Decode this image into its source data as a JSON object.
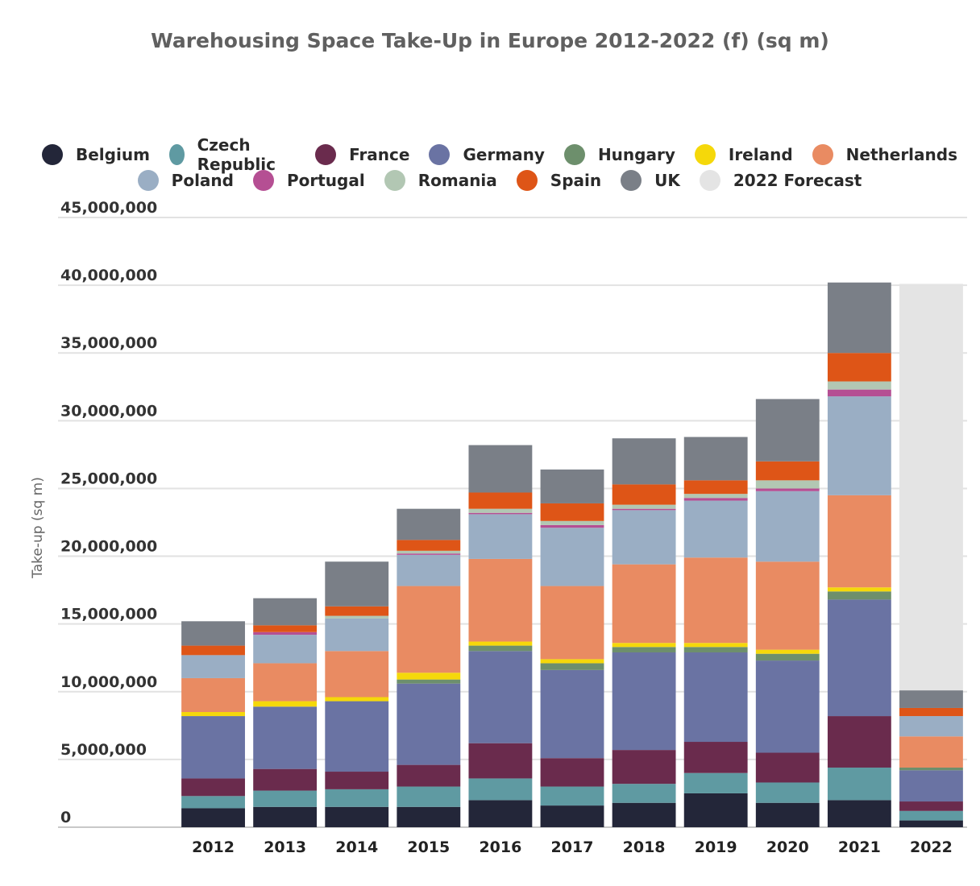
{
  "chart_data": {
    "type": "bar",
    "stacked": true,
    "title": "Warehousing Space Take-Up in Europe 2012-2022 (f) (sq m)",
    "ylabel": "Take-up (sq m)",
    "xlabel": "",
    "ylim": [
      0,
      45000000
    ],
    "yticks": [
      0,
      5000000,
      10000000,
      15000000,
      20000000,
      25000000,
      30000000,
      35000000,
      40000000,
      45000000
    ],
    "ytick_labels": [
      "0",
      "5,000,000",
      "10,000,000",
      "15,000,000",
      "20,000,000",
      "25,000,000",
      "30,000,000",
      "35,000,000",
      "40,000,000",
      "45,000,000"
    ],
    "grid": true,
    "legend_position": "top",
    "categories": [
      "2012",
      "2013",
      "2014",
      "2015",
      "2016",
      "2017",
      "2018",
      "2019",
      "2020",
      "2021",
      "2022"
    ],
    "series": [
      {
        "name": "Belgium",
        "color": "#232639",
        "values": [
          1400000,
          1500000,
          1500000,
          1500000,
          2000000,
          1600000,
          1800000,
          2500000,
          1800000,
          2000000,
          500000
        ]
      },
      {
        "name": "Czech Republic",
        "color": "#5f9aa2",
        "values": [
          900000,
          1200000,
          1300000,
          1500000,
          1600000,
          1400000,
          1400000,
          1500000,
          1500000,
          2400000,
          700000
        ]
      },
      {
        "name": "France",
        "color": "#6a2b4d",
        "values": [
          1300000,
          1600000,
          1300000,
          1600000,
          2600000,
          2100000,
          2500000,
          2300000,
          2200000,
          3800000,
          700000
        ]
      },
      {
        "name": "Germany",
        "color": "#6a73a3",
        "values": [
          4600000,
          4600000,
          5200000,
          6000000,
          6800000,
          6500000,
          7200000,
          6600000,
          6800000,
          8600000,
          2300000
        ]
      },
      {
        "name": "Hungary",
        "color": "#6d8f6c",
        "values": [
          0,
          0,
          0,
          300000,
          400000,
          500000,
          400000,
          400000,
          500000,
          600000,
          200000
        ]
      },
      {
        "name": "Ireland",
        "color": "#f5d80a",
        "values": [
          300000,
          400000,
          300000,
          500000,
          300000,
          300000,
          300000,
          300000,
          300000,
          300000,
          0
        ]
      },
      {
        "name": "Netherlands",
        "color": "#e98b62",
        "values": [
          2500000,
          2800000,
          3400000,
          6400000,
          6100000,
          5400000,
          5800000,
          6300000,
          6500000,
          6800000,
          2300000
        ]
      },
      {
        "name": "Poland",
        "color": "#9aaec4",
        "values": [
          1700000,
          2100000,
          2400000,
          2300000,
          3300000,
          4300000,
          4000000,
          4200000,
          5200000,
          7300000,
          1500000
        ]
      },
      {
        "name": "Portugal",
        "color": "#b54f93",
        "values": [
          0,
          200000,
          0,
          100000,
          100000,
          200000,
          100000,
          200000,
          200000,
          500000,
          0
        ]
      },
      {
        "name": "Romania",
        "color": "#b2c7b3",
        "values": [
          0,
          0,
          200000,
          200000,
          300000,
          300000,
          300000,
          300000,
          600000,
          600000,
          0
        ]
      },
      {
        "name": "Spain",
        "color": "#de5517",
        "values": [
          700000,
          500000,
          700000,
          800000,
          1200000,
          1300000,
          1500000,
          1000000,
          1400000,
          2100000,
          600000
        ]
      },
      {
        "name": "UK",
        "color": "#7a7f87",
        "values": [
          1800000,
          2000000,
          3300000,
          2300000,
          3500000,
          2500000,
          3400000,
          3200000,
          4600000,
          5200000,
          1300000
        ]
      },
      {
        "name": "2022 Forecast",
        "color": "#e4e4e4",
        "values": [
          0,
          0,
          0,
          0,
          0,
          0,
          0,
          0,
          0,
          0,
          30000000
        ]
      }
    ]
  }
}
